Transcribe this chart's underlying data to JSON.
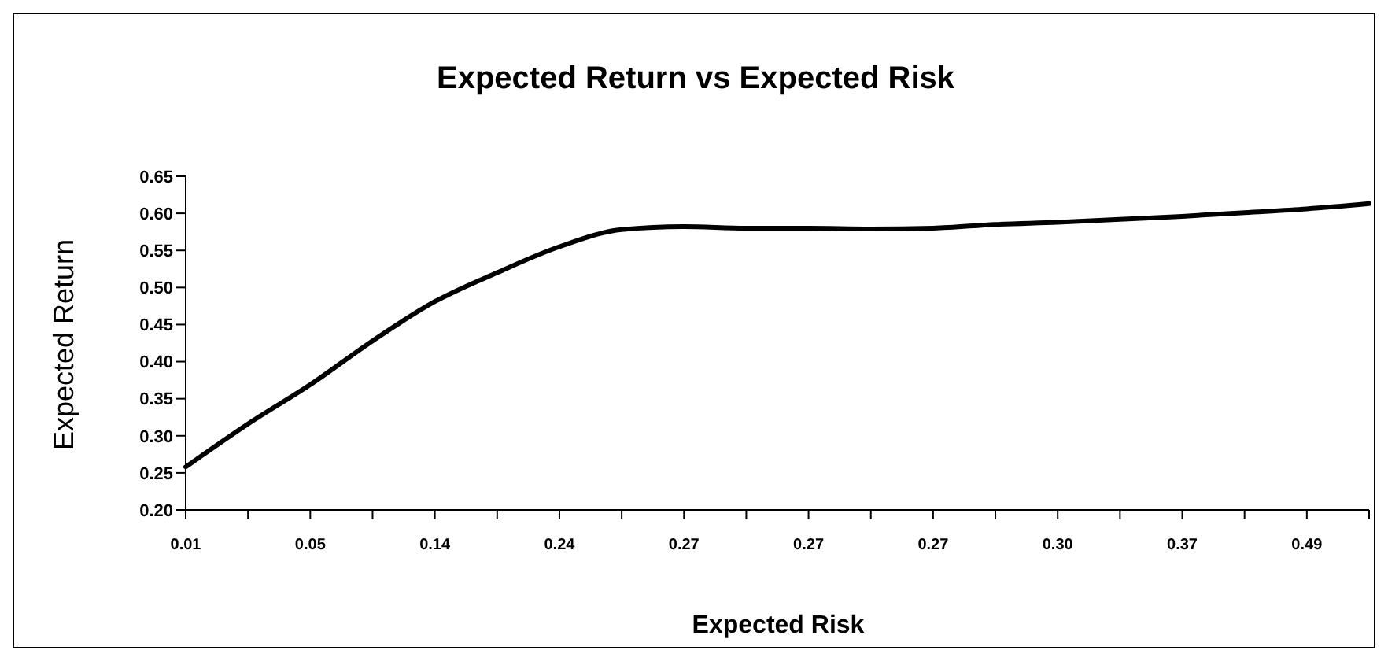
{
  "chart_data": {
    "type": "line",
    "title": "Expected Return vs Expected Risk",
    "xlabel": "Expected Risk",
    "ylabel": "Expected Return",
    "categories": [
      "0.01",
      null,
      "0.05",
      null,
      "0.14",
      null,
      "0.24",
      null,
      "0.27",
      null,
      "0.27",
      null,
      "0.27",
      null,
      "0.30",
      null,
      "0.37",
      null,
      "0.49",
      null
    ],
    "series": [
      {
        "color": "#000000",
        "values": [
          0.258,
          0.316,
          0.369,
          0.428,
          0.481,
          0.52,
          0.555,
          0.578,
          0.582,
          0.58,
          0.58,
          0.579,
          0.58,
          0.585,
          0.588,
          0.592,
          0.596,
          0.601,
          0.606,
          0.613
        ]
      }
    ],
    "ylim": [
      0.2,
      0.65
    ],
    "yticks": [
      {
        "value": 0.2,
        "label": "0.20"
      },
      {
        "value": 0.25,
        "label": "0.25"
      },
      {
        "value": 0.3,
        "label": "0.30"
      },
      {
        "value": 0.35,
        "label": "0.35"
      },
      {
        "value": 0.4,
        "label": "0.40"
      },
      {
        "value": 0.45,
        "label": "0.45"
      },
      {
        "value": 0.5,
        "label": "0.50"
      },
      {
        "value": 0.55,
        "label": "0.55"
      },
      {
        "value": 0.6,
        "label": "0.60"
      },
      {
        "value": 0.65,
        "label": "0.65"
      }
    ],
    "grid": false,
    "legend": false,
    "marker": "none",
    "line_style": "solid"
  }
}
